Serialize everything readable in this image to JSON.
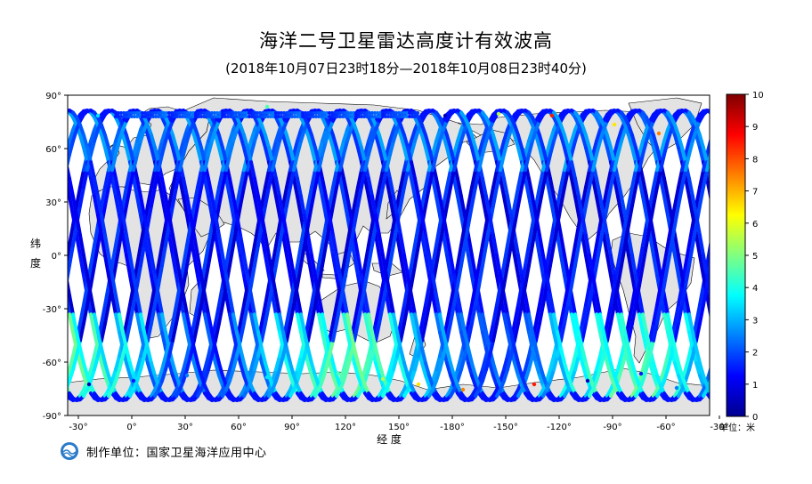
{
  "title": "海洋二号卫星雷达高度计有效波高",
  "subtitle": "(2018年10月07日23时18分—2018年10月08日23时40分)",
  "xlabel": "经 度",
  "ylabel_chars": [
    "纬",
    "度"
  ],
  "unit_label": "单位：米",
  "footer_text": "制作单位：国家卫星海洋应用中心",
  "lon_ticks": [
    "-30°",
    "0°",
    "30°",
    "60°",
    "90°",
    "120°",
    "150°",
    "-180°",
    "-150°",
    "-120°",
    "-90°",
    "-60°",
    "-30°"
  ],
  "lat_ticks": [
    "90°",
    "60°",
    "30°",
    "0°",
    "-30°",
    "-60°",
    "-90°"
  ],
  "colorbar": {
    "ticks": [
      "0",
      "1",
      "2",
      "3",
      "4",
      "5",
      "6",
      "7",
      "8",
      "9",
      "10"
    ],
    "min": 0,
    "max": 10,
    "colors": [
      "#00008f",
      "#0000ff",
      "#0080ff",
      "#00ffff",
      "#80ff80",
      "#ffff00",
      "#ff8000",
      "#ff0000",
      "#800000"
    ]
  },
  "colors": {
    "land": "#e3e3e3",
    "coast": "#000000",
    "ocean": "#ffffff"
  }
}
